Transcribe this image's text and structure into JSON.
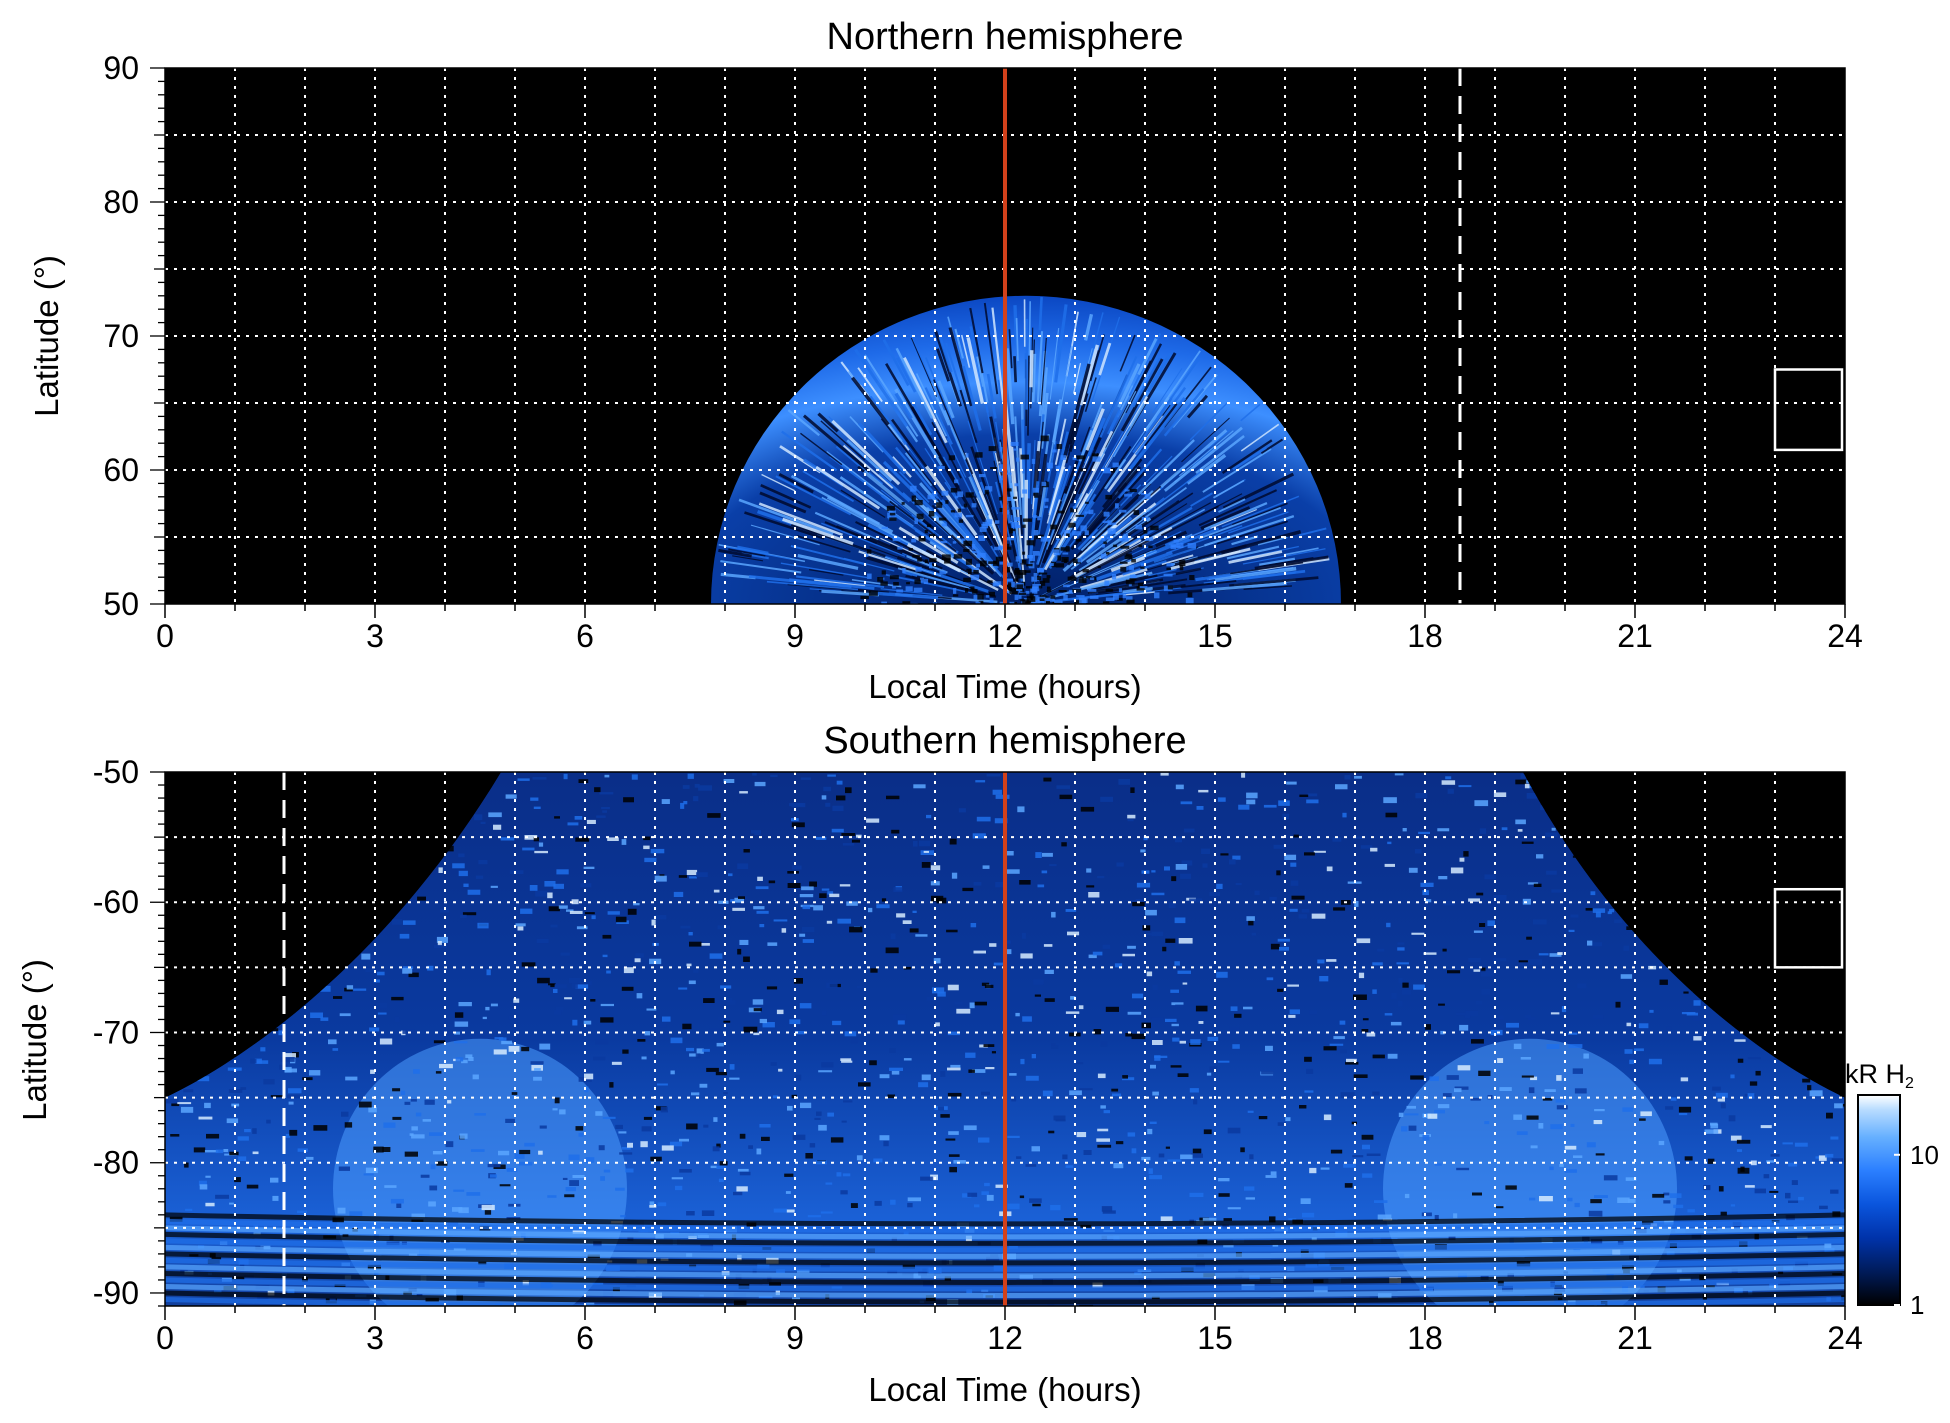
{
  "chart_data": [
    {
      "type": "heatmap",
      "title": "Northern hemisphere",
      "xlabel": "Local Time (hours)",
      "ylabel": "Latitude (°)",
      "xlim": [
        0,
        24
      ],
      "ylim": [
        50,
        90
      ],
      "xticks": [
        0,
        3,
        6,
        9,
        12,
        15,
        18,
        21,
        24
      ],
      "yticks": [
        50,
        60,
        70,
        80,
        90
      ],
      "x_gridlines": [
        1,
        2,
        3,
        4,
        5,
        6,
        7,
        8,
        9,
        10,
        11,
        12,
        13,
        14,
        15,
        16,
        17,
        18,
        19,
        20,
        21,
        22,
        23
      ],
      "y_gridlines": [
        55,
        60,
        65,
        70,
        75,
        80,
        85
      ],
      "grid": "on",
      "background": "#000000",
      "emission_region": {
        "description_shape": "dome",
        "local_time_range": [
          7.6,
          16.6
        ],
        "peak_latitude": 73,
        "peak_local_time": 12.3,
        "bright_oval_latitudes": [
          62,
          72
        ],
        "interior_mixed_latitudes": [
          50,
          62
        ]
      },
      "lines": [
        {
          "type": "vertical",
          "x": 12,
          "style": "solid",
          "color": "#d2411b"
        },
        {
          "type": "vertical",
          "x": 18.5,
          "style": "dashed",
          "color": "#ffffff"
        }
      ],
      "box": {
        "x": [
          23,
          24
        ],
        "y": [
          61.5,
          67.5
        ],
        "color": "#ffffff"
      }
    },
    {
      "type": "heatmap",
      "title": "Southern hemisphere",
      "xlabel": "Local Time (hours)",
      "ylabel": "Latitude (°)",
      "xlim": [
        0,
        24
      ],
      "ylim": [
        -91,
        -50
      ],
      "xticks": [
        0,
        3,
        6,
        9,
        12,
        15,
        18,
        21,
        24
      ],
      "yticks": [
        -50,
        -60,
        -70,
        -80,
        -90
      ],
      "x_gridlines": [
        1,
        2,
        3,
        4,
        5,
        6,
        7,
        8,
        9,
        10,
        11,
        12,
        13,
        14,
        15,
        16,
        17,
        18,
        19,
        20,
        21,
        22,
        23
      ],
      "y_gridlines": [
        -55,
        -60,
        -65,
        -70,
        -75,
        -80,
        -85
      ],
      "grid": "on",
      "background": "#000000",
      "emission_region": {
        "description_shape": "bowl",
        "local_time_range_at_-50": [
          4.8,
          19.4
        ],
        "edge_latitude_at_0_and_24": -75,
        "bright_arcs_local_time": [
          [
            3,
            6
          ],
          [
            18,
            21
          ]
        ],
        "bright_cap_latitudes": [
          -91,
          -75
        ]
      },
      "lines": [
        {
          "type": "vertical",
          "x": 12,
          "style": "solid",
          "color": "#d2411b"
        },
        {
          "type": "vertical",
          "x": 1.7,
          "style": "dashed",
          "color": "#ffffff"
        }
      ],
      "box": {
        "x": [
          23,
          24
        ],
        "y": [
          -65,
          -59
        ],
        "color": "#ffffff"
      }
    }
  ],
  "colorbar": {
    "label": "kR H",
    "label_subscript": "2",
    "scale": "log",
    "range": [
      1,
      25
    ],
    "ticks": [
      1,
      10
    ],
    "colormap": [
      "#000000",
      "#001a55",
      "#0033aa",
      "#0a55dd",
      "#2b7fff",
      "#66b0ff",
      "#b8dcff",
      "#ffffff"
    ]
  }
}
